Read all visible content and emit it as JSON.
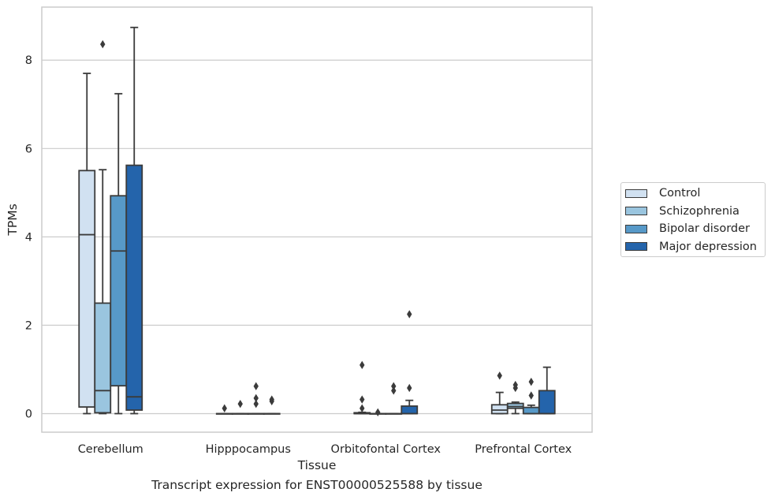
{
  "caption": "Transcript expression for ENST00000525588 by tissue",
  "colors": {
    "Control": "#d1e1f1",
    "Schizophrenia": "#9ac5df",
    "Bipolar disorder": "#5799c8",
    "Major depression": "#2464ab",
    "grid": "#cccccc",
    "stroke": "#3b3b3b"
  },
  "chart_data": {
    "type": "box",
    "xlabel": "Tissue",
    "ylabel": "TPMs",
    "ylim": [
      -0.42,
      9.2
    ],
    "yticks": [
      0,
      2,
      4,
      6,
      8
    ],
    "grid": "horizontal",
    "legend": "right",
    "categories": [
      "Cerebellum",
      "Hipppocampus",
      "Orbitofontal Cortex",
      "Prefrontal Cortex"
    ],
    "series": [
      {
        "name": "Control",
        "boxes": [
          {
            "whislo": 0.0,
            "q1": 0.15,
            "med": 4.05,
            "q3": 5.5,
            "whishi": 7.7,
            "fliers": []
          },
          {
            "whislo": 0.0,
            "q1": 0.0,
            "med": 0.0,
            "q3": 0.0,
            "whishi": 0.0,
            "fliers": [
              0.12
            ]
          },
          {
            "whislo": 0.0,
            "q1": 0.0,
            "med": 0.0,
            "q3": 0.02,
            "whishi": 0.03,
            "fliers": [
              1.1,
              0.32,
              0.12
            ]
          },
          {
            "whislo": 0.0,
            "q1": 0.0,
            "med": 0.08,
            "q3": 0.2,
            "whishi": 0.48,
            "fliers": [
              0.86
            ]
          }
        ]
      },
      {
        "name": "Schizophrenia",
        "boxes": [
          {
            "whislo": 0.0,
            "q1": 0.02,
            "med": 0.52,
            "q3": 2.5,
            "whishi": 5.52,
            "fliers": [
              8.36
            ]
          },
          {
            "whislo": 0.0,
            "q1": 0.0,
            "med": 0.0,
            "q3": 0.0,
            "whishi": 0.0,
            "fliers": [
              0.22
            ]
          },
          {
            "whislo": 0.0,
            "q1": 0.0,
            "med": 0.0,
            "q3": 0.0,
            "whishi": 0.0,
            "fliers": [
              0.03
            ]
          },
          {
            "whislo": 0.0,
            "q1": 0.12,
            "med": 0.16,
            "q3": 0.23,
            "whishi": 0.26,
            "fliers": [
              0.65,
              0.58
            ]
          }
        ]
      },
      {
        "name": "Bipolar disorder",
        "boxes": [
          {
            "whislo": 0.0,
            "q1": 0.63,
            "med": 3.68,
            "q3": 4.93,
            "whishi": 7.24,
            "fliers": []
          },
          {
            "whislo": 0.0,
            "q1": 0.0,
            "med": 0.0,
            "q3": 0.0,
            "whishi": 0.0,
            "fliers": [
              0.62,
              0.35,
              0.22
            ]
          },
          {
            "whislo": 0.0,
            "q1": 0.0,
            "med": 0.0,
            "q3": 0.0,
            "whishi": 0.0,
            "fliers": [
              0.62,
              0.52
            ]
          },
          {
            "whislo": 0.0,
            "q1": 0.0,
            "med": 0.0,
            "q3": 0.14,
            "whishi": 0.19,
            "fliers": [
              0.72,
              0.41
            ]
          }
        ]
      },
      {
        "name": "Major depression",
        "boxes": [
          {
            "whislo": 0.0,
            "q1": 0.08,
            "med": 0.38,
            "q3": 5.62,
            "whishi": 8.74,
            "fliers": []
          },
          {
            "whislo": 0.0,
            "q1": 0.0,
            "med": 0.0,
            "q3": 0.0,
            "whishi": 0.0,
            "fliers": [
              0.32,
              0.28
            ]
          },
          {
            "whislo": 0.0,
            "q1": 0.0,
            "med": 0.0,
            "q3": 0.17,
            "whishi": 0.3,
            "fliers": [
              2.25,
              0.58
            ]
          },
          {
            "whislo": 0.0,
            "q1": 0.0,
            "med": 0.0,
            "q3": 0.52,
            "whishi": 1.05,
            "fliers": []
          }
        ]
      }
    ]
  }
}
